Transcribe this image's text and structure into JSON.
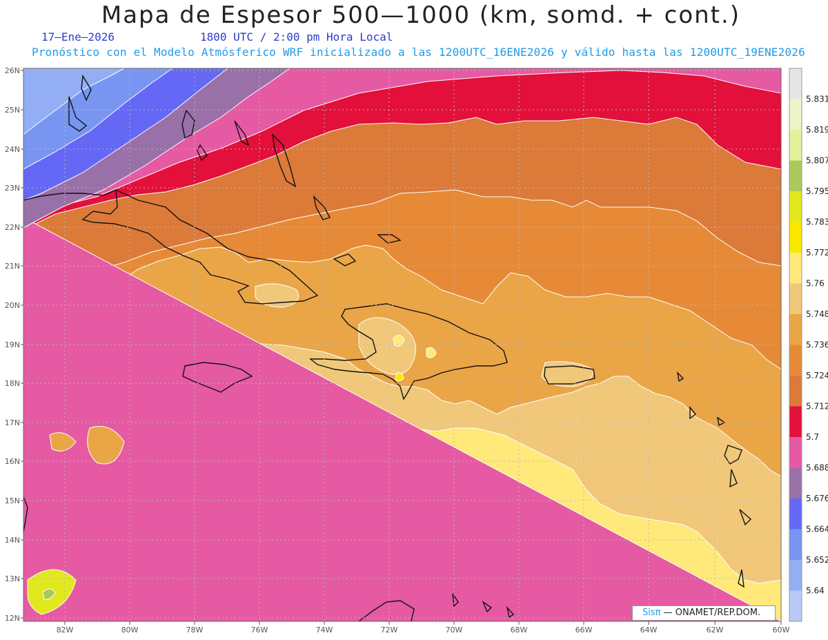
{
  "title": "Mapa de Espesor 500—1000 (km, somd. + cont.)",
  "date": "17—Ene—2026",
  "time": "1800 UTC / 2:00 pm Hora Local",
  "forecast_note": "Pronóstico con el Modelo Atmósferico WRF inicializado a las 1200UTC_16ENE2026 y válido hasta las  1200UTC_19ENE2026",
  "credit": {
    "brand": "Sisπ",
    "org": "— ONAMET/REP.DOM."
  },
  "lat_labels": [
    "26N",
    "25N",
    "24N",
    "23N",
    "22N",
    "21N",
    "20N",
    "19N",
    "18N",
    "17N",
    "16N",
    "15N",
    "14N",
    "13N",
    "12N"
  ],
  "lon_labels": [
    "82W",
    "80W",
    "78W",
    "76W",
    "74W",
    "72W",
    "70W",
    "68W",
    "66W",
    "64W",
    "62W",
    "60W"
  ],
  "colorbar": {
    "levels": [
      "5.831",
      "5.819",
      "5.807",
      "5.795",
      "5.783",
      "5.772",
      "5.76",
      "5.748",
      "5.736",
      "5.724",
      "5.712",
      "5.7",
      "5.688",
      "5.676",
      "5.664",
      "5.652",
      "5.64"
    ],
    "colors": [
      "#e6e6e6",
      "#eef4c8",
      "#e2f39a",
      "#a9c95c",
      "#e1e81e",
      "#fae700",
      "#ffe97a",
      "#f1c87a",
      "#eaa547",
      "#e68a37",
      "#dc7a3a",
      "#e2103a",
      "#e55aa2",
      "#9a70a8",
      "#6468f4",
      "#7895f2",
      "#93aef5",
      "#b9c9f8"
    ]
  },
  "bands": [
    {
      "name": "band-5652",
      "color": "#93aef5"
    },
    {
      "name": "band-5664",
      "color": "#7895f2"
    },
    {
      "name": "band-5676",
      "color": "#6468f4"
    },
    {
      "name": "band-5688",
      "color": "#9a70a8"
    },
    {
      "name": "band-5700",
      "color": "#e55aa2"
    },
    {
      "name": "band-5712",
      "color": "#e2103a"
    },
    {
      "name": "band-5724",
      "color": "#dc7a3a"
    },
    {
      "name": "band-5736",
      "color": "#e68a37"
    },
    {
      "name": "band-5748",
      "color": "#eaa547"
    },
    {
      "name": "band-5760",
      "color": "#f1c87a"
    },
    {
      "name": "band-5772",
      "color": "#ffe97a"
    },
    {
      "name": "band-5783",
      "color": "#fae700"
    },
    {
      "name": "band-5795",
      "color": "#e1e81e"
    },
    {
      "name": "band-5807",
      "color": "#a9c95c"
    }
  ]
}
